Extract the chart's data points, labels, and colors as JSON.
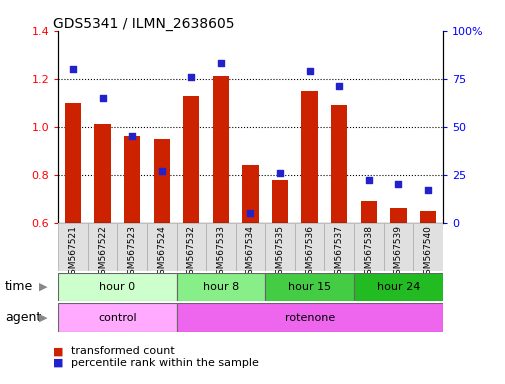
{
  "title": "GDS5341 / ILMN_2638605",
  "samples": [
    "GSM567521",
    "GSM567522",
    "GSM567523",
    "GSM567524",
    "GSM567532",
    "GSM567533",
    "GSM567534",
    "GSM567535",
    "GSM567536",
    "GSM567537",
    "GSM567538",
    "GSM567539",
    "GSM567540"
  ],
  "bar_values": [
    1.1,
    1.01,
    0.96,
    0.95,
    1.13,
    1.21,
    0.84,
    0.78,
    1.15,
    1.09,
    0.69,
    0.66,
    0.65
  ],
  "dot_values_pct": [
    80,
    65,
    45,
    27,
    76,
    83,
    5,
    26,
    79,
    71,
    22,
    20,
    17
  ],
  "ylim_left": [
    0.6,
    1.4
  ],
  "ylim_right": [
    0,
    100
  ],
  "yticks_left": [
    0.6,
    0.8,
    1.0,
    1.2,
    1.4
  ],
  "yticks_right": [
    0,
    25,
    50,
    75,
    100
  ],
  "bar_color": "#cc2200",
  "dot_color": "#2222cc",
  "bar_bottom": 0.6,
  "time_groups": [
    {
      "label": "hour 0",
      "start": 0,
      "end": 4,
      "color": "#ccffcc"
    },
    {
      "label": "hour 8",
      "start": 4,
      "end": 7,
      "color": "#88ee88"
    },
    {
      "label": "hour 15",
      "start": 7,
      "end": 10,
      "color": "#44cc44"
    },
    {
      "label": "hour 24",
      "start": 10,
      "end": 13,
      "color": "#22bb22"
    }
  ],
  "agent_groups": [
    {
      "label": "control",
      "start": 0,
      "end": 4,
      "color": "#ffaaff"
    },
    {
      "label": "rotenone",
      "start": 4,
      "end": 13,
      "color": "#ee66ee"
    }
  ],
  "legend_bar_label": "transformed count",
  "legend_dot_label": "percentile rank within the sample",
  "time_label": "time",
  "agent_label": "agent",
  "grid_yticks": [
    0.8,
    1.0,
    1.2
  ]
}
